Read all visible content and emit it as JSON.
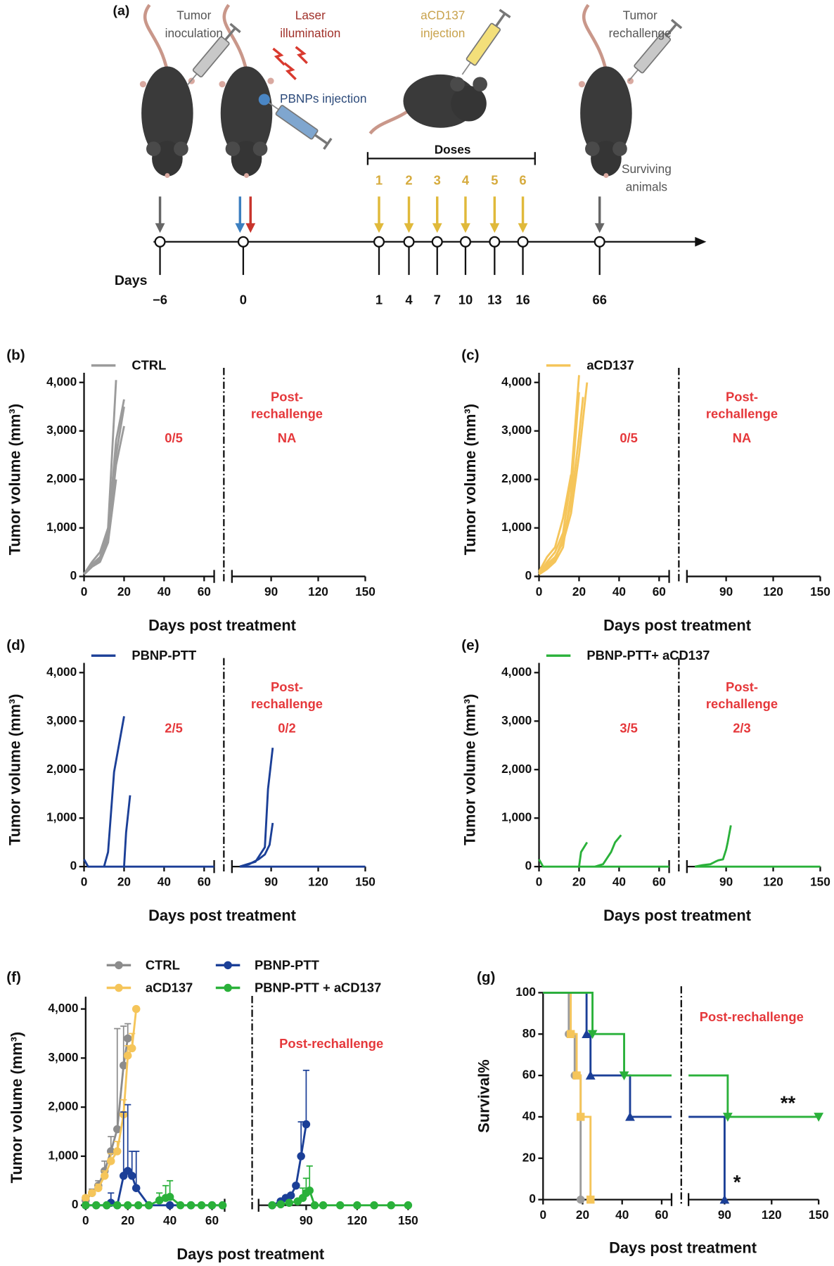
{
  "schematic": {
    "label": "(a)",
    "tumor_inoculation": [
      "Tumor",
      "inoculation"
    ],
    "laser": [
      "Laser",
      "illumination"
    ],
    "pbnps": "PBNPs injection",
    "acd137": [
      "aCD137",
      "injection"
    ],
    "rechallenge": [
      "Tumor",
      "rechallenge"
    ],
    "surviving": [
      "Surviving",
      "animals"
    ],
    "doses_title": "Doses",
    "doses": [
      "1",
      "2",
      "3",
      "4",
      "5",
      "6"
    ],
    "days_title": "Days",
    "days": [
      "−6",
      "0",
      "1",
      "4",
      "7",
      "10",
      "13",
      "16",
      "66"
    ]
  },
  "chart_data": [
    {
      "type": "line",
      "title": "(b)",
      "ylabel": "Tumor volume (mm³)",
      "xlabel": "Days post treatment",
      "ylim": [
        0,
        4200
      ],
      "yticks": [
        0,
        {
          "value": 1000,
          "label": "1,000"
        },
        {
          "value": 2000,
          "label": "2,000"
        },
        {
          "value": 3000,
          "label": "3,000"
        },
        {
          "value": 4000,
          "label": "4,000"
        }
      ],
      "xsegments": [
        {
          "xlim": [
            0,
            65
          ],
          "xticks": [
            0,
            20,
            40,
            60
          ]
        },
        {
          "xlim": [
            65,
            150
          ],
          "xticks": [
            90,
            120,
            150
          ]
        }
      ],
      "ratio": "0/5",
      "post_label": [
        "Post-",
        "rechallenge"
      ],
      "post_ratio": "NA",
      "series": [
        {
          "name": "CTRL",
          "color": "#9b9b9b",
          "x": [
            0,
            4,
            8,
            12,
            16
          ],
          "values": [
            50,
            300,
            500,
            1000,
            4050
          ]
        },
        {
          "color": "#9b9b9b",
          "x": [
            0,
            4,
            8,
            12,
            16,
            20
          ],
          "values": [
            60,
            250,
            400,
            900,
            2800,
            3650
          ]
        },
        {
          "color": "#9b9b9b",
          "x": [
            0,
            4,
            8,
            12,
            16,
            20
          ],
          "values": [
            40,
            200,
            350,
            950,
            2500,
            3500
          ]
        },
        {
          "color": "#9b9b9b",
          "x": [
            0,
            4,
            8,
            12,
            16,
            20
          ],
          "values": [
            50,
            250,
            350,
            800,
            2300,
            3100
          ]
        },
        {
          "color": "#9b9b9b",
          "x": [
            0,
            4,
            8,
            12,
            16
          ],
          "values": [
            50,
            200,
            300,
            700,
            2000
          ]
        }
      ]
    },
    {
      "type": "line",
      "title": "(c)",
      "ylabel": "Tumor volume (mm³)",
      "xlabel": "Days post treatment",
      "ylim": [
        0,
        4200
      ],
      "yticks": [
        0,
        {
          "value": 1000,
          "label": "1,000"
        },
        {
          "value": 2000,
          "label": "2,000"
        },
        {
          "value": 3000,
          "label": "3,000"
        },
        {
          "value": 4000,
          "label": "4,000"
        }
      ],
      "xsegments": [
        {
          "xlim": [
            0,
            65
          ],
          "xticks": [
            0,
            20,
            40,
            60
          ]
        },
        {
          "xlim": [
            65,
            150
          ],
          "xticks": [
            90,
            120,
            150
          ]
        }
      ],
      "ratio": "0/5",
      "post_label": [
        "Post-",
        "rechallenge"
      ],
      "post_ratio": "NA",
      "series": [
        {
          "name": "aCD137",
          "color": "#f5c55a",
          "x": [
            0,
            4,
            8,
            12,
            16,
            20
          ],
          "values": [
            50,
            300,
            500,
            900,
            2000,
            4150
          ]
        },
        {
          "color": "#f5c55a",
          "x": [
            0,
            4,
            8,
            12,
            16,
            20,
            24
          ],
          "values": [
            80,
            250,
            400,
            700,
            1300,
            2500,
            4000
          ]
        },
        {
          "color": "#f5c55a",
          "x": [
            0,
            4,
            8,
            12,
            16,
            20
          ],
          "values": [
            40,
            150,
            300,
            600,
            1700,
            3800
          ]
        },
        {
          "color": "#f5c55a",
          "x": [
            0,
            4,
            8,
            12,
            16,
            20,
            22
          ],
          "values": [
            60,
            200,
            350,
            800,
            1500,
            2900,
            3700
          ]
        },
        {
          "color": "#f5c55a",
          "x": [
            0,
            4,
            8,
            12,
            16
          ],
          "values": [
            100,
            400,
            600,
            1200,
            2100
          ]
        }
      ]
    },
    {
      "type": "line",
      "title": "(d)",
      "ylabel": "Tumor volume (mm³)",
      "xlabel": "Days post treatment",
      "ylim": [
        0,
        4200
      ],
      "yticks": [
        0,
        {
          "value": 1000,
          "label": "1,000"
        },
        {
          "value": 2000,
          "label": "2,000"
        },
        {
          "value": 3000,
          "label": "3,000"
        },
        {
          "value": 4000,
          "label": "4,000"
        }
      ],
      "xsegments": [
        {
          "xlim": [
            0,
            65
          ],
          "xticks": [
            0,
            20,
            40,
            60
          ]
        },
        {
          "xlim": [
            65,
            150
          ],
          "xticks": [
            90,
            120,
            150
          ]
        }
      ],
      "ratio": "2/5",
      "post_label": [
        "Post-",
        "rechallenge"
      ],
      "post_ratio": "0/2",
      "series": [
        {
          "name": "PBNP-PTT",
          "color": "#1b3f97",
          "x": [
            0,
            2,
            65,
            70,
            150
          ],
          "values": [
            150,
            0,
            0,
            0,
            0
          ]
        },
        {
          "color": "#1b3f97",
          "x": [
            10,
            12,
            15,
            20
          ],
          "values": [
            0,
            300,
            1950,
            3100
          ]
        },
        {
          "color": "#1b3f97",
          "x": [
            20,
            21,
            23
          ],
          "values": [
            0,
            700,
            1470
          ]
        },
        {
          "color": "#1b3f97",
          "x": [
            70,
            75,
            80,
            83,
            86,
            88,
            91
          ],
          "values": [
            0,
            50,
            100,
            250,
            400,
            1600,
            2450
          ]
        },
        {
          "color": "#1b3f97",
          "x": [
            70,
            76,
            82,
            86,
            89,
            91
          ],
          "values": [
            0,
            50,
            150,
            250,
            450,
            900
          ]
        }
      ]
    },
    {
      "type": "line",
      "title": "(e)",
      "ylabel": "Tumor volume (mm³)",
      "xlabel": "Days post treatment",
      "ylim": [
        0,
        4200
      ],
      "yticks": [
        0,
        {
          "value": 1000,
          "label": "1,000"
        },
        {
          "value": 2000,
          "label": "2,000"
        },
        {
          "value": 3000,
          "label": "3,000"
        },
        {
          "value": 4000,
          "label": "4,000"
        }
      ],
      "xsegments": [
        {
          "xlim": [
            0,
            65
          ],
          "xticks": [
            0,
            20,
            40,
            60
          ]
        },
        {
          "xlim": [
            65,
            150
          ],
          "xticks": [
            90,
            120,
            150
          ]
        }
      ],
      "ratio": "3/5",
      "post_label": [
        "Post-",
        "rechallenge"
      ],
      "post_ratio": "2/3",
      "series": [
        {
          "name": "PBNP-PTT+ aCD137",
          "color": "#2ab13a",
          "x": [
            0,
            2,
            65,
            70,
            150
          ],
          "values": [
            150,
            0,
            0,
            0,
            0
          ]
        },
        {
          "color": "#2ab13a",
          "x": [
            20,
            21,
            24
          ],
          "values": [
            0,
            300,
            500
          ]
        },
        {
          "color": "#2ab13a",
          "x": [
            28,
            32,
            36,
            38,
            41
          ],
          "values": [
            0,
            50,
            300,
            500,
            650
          ]
        },
        {
          "color": "#2ab13a",
          "x": [
            70,
            75,
            80,
            83,
            85,
            88,
            90,
            91,
            93
          ],
          "values": [
            0,
            30,
            50,
            100,
            130,
            150,
            350,
            500,
            850
          ]
        }
      ]
    },
    {
      "type": "line",
      "markers": true,
      "title": "(f)",
      "ylabel": "Tumor volume (mm³)",
      "xlabel": "Days post treatment",
      "ylim": [
        0,
        4250
      ],
      "yticks": [
        0,
        {
          "value": 1000,
          "label": "1,000"
        },
        {
          "value": 2000,
          "label": "2,000"
        },
        {
          "value": 3000,
          "label": "3,000"
        },
        {
          "value": 4000,
          "label": "4,000"
        }
      ],
      "xsegments": [
        {
          "xlim": [
            0,
            66
          ],
          "xticks": [
            0,
            20,
            40,
            60
          ]
        },
        {
          "xlim": [
            62,
            150
          ],
          "xticks": [
            90,
            120,
            150
          ]
        }
      ],
      "post_label": "Post-rechallenge",
      "series": [
        {
          "name": "CTRL",
          "color": "#8c8c8c",
          "x": [
            0,
            3,
            6,
            9,
            12,
            15,
            18,
            20
          ],
          "values": [
            100,
            250,
            400,
            700,
            1100,
            1550,
            2850,
            3400
          ],
          "errors": [
            50,
            80,
            100,
            200,
            300,
            2050,
            800,
            300
          ]
        },
        {
          "name": "aCD137",
          "color": "#f5c55a",
          "x": [
            0,
            3,
            6,
            9,
            12,
            15,
            18,
            20,
            22,
            24
          ],
          "values": [
            150,
            250,
            350,
            600,
            900,
            1100,
            1850,
            3050,
            3200,
            4000
          ],
          "errors": [
            50,
            50,
            80,
            100,
            150,
            200,
            300,
            200,
            300,
            null
          ]
        },
        {
          "name": "PBNP-PTT",
          "color": "#1b3f97",
          "x": [
            0,
            5,
            10,
            12,
            15,
            18,
            20,
            22,
            24,
            30,
            40,
            50,
            60,
            65,
            70,
            75,
            78,
            81,
            84,
            87,
            90
          ],
          "values": [
            0,
            0,
            0,
            50,
            0,
            600,
            700,
            600,
            350,
            0,
            0,
            0,
            0,
            0,
            0,
            80,
            150,
            200,
            400,
            1000,
            1650
          ],
          "errors": [
            null,
            null,
            null,
            200,
            null,
            1300,
            1350,
            500,
            750,
            null,
            null,
            null,
            null,
            null,
            null,
            null,
            null,
            null,
            null,
            700,
            1100
          ]
        },
        {
          "name": "PBNP-PTT + aCD137",
          "color": "#2ab13a",
          "x": [
            0,
            5,
            10,
            15,
            20,
            25,
            30,
            35,
            38,
            40,
            45,
            50,
            55,
            60,
            65,
            70,
            75,
            80,
            85,
            88,
            90,
            92,
            95,
            100,
            110,
            120,
            130,
            140,
            150
          ],
          "values": [
            0,
            0,
            0,
            0,
            0,
            0,
            0,
            100,
            150,
            170,
            0,
            0,
            0,
            0,
            0,
            0,
            20,
            50,
            80,
            150,
            250,
            300,
            0,
            0,
            0,
            0,
            0,
            0,
            0
          ],
          "errors": [
            null,
            null,
            null,
            null,
            null,
            null,
            null,
            150,
            250,
            330,
            null,
            null,
            null,
            null,
            null,
            null,
            null,
            null,
            null,
            200,
            300,
            500,
            null,
            null,
            null,
            null,
            null,
            null,
            null
          ]
        }
      ]
    },
    {
      "type": "step",
      "title": "(g)",
      "ylabel": "Survival%",
      "xlabel": "Days post treatment",
      "ylim": [
        0,
        100
      ],
      "yticks": [
        0,
        20,
        40,
        60,
        80,
        100
      ],
      "xsegments": [
        {
          "xlim": [
            0,
            65
          ],
          "xticks": [
            0,
            20,
            40,
            60
          ]
        },
        {
          "xlim": [
            67,
            150
          ],
          "xticks": [
            90,
            120,
            150
          ]
        }
      ],
      "post_label": "Post-rechallenge",
      "annotations": [
        "**",
        "*"
      ],
      "series": [
        {
          "color": "#9b9b9b",
          "marker": "circle",
          "x": [
            0,
            13,
            16,
            19
          ],
          "values": [
            100,
            80,
            60,
            0
          ]
        },
        {
          "color": "#f5c55a",
          "marker": "square",
          "x": [
            0,
            14,
            17,
            19,
            24
          ],
          "values": [
            100,
            80,
            60,
            40,
            0
          ]
        },
        {
          "color": "#1b3f97",
          "marker": "triangle-up",
          "x": [
            0,
            22,
            24,
            44,
            90
          ],
          "values": [
            100,
            80,
            60,
            40,
            0
          ]
        },
        {
          "color": "#2ab13a",
          "marker": "triangle-down",
          "x": [
            0,
            25,
            41,
            92,
            150
          ],
          "values": [
            100,
            80,
            60,
            40,
            40
          ]
        }
      ]
    }
  ]
}
